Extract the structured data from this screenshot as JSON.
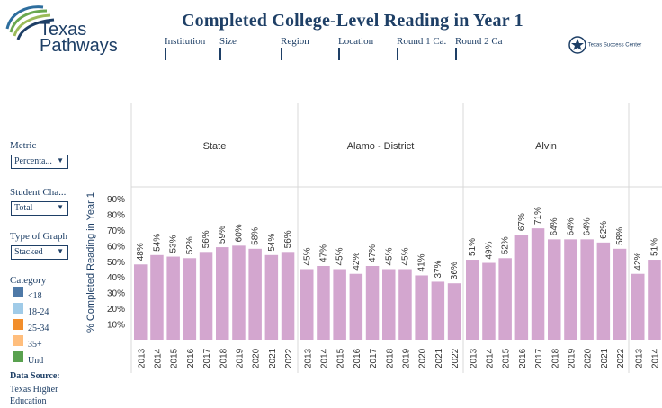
{
  "header": {
    "logo_line1": "Texas",
    "logo_line2": "Pathways",
    "title": "Completed College-Level Reading in Year 1",
    "filters": [
      "Institution",
      "Size",
      "Region",
      "Location",
      "Round 1 Ca.",
      "Round 2 Ca"
    ],
    "partner": "Texas Success Center"
  },
  "controls": {
    "metric_label": "Metric",
    "metric_value": "Percenta...",
    "student_label": "Student Cha...",
    "student_value": "Total",
    "graph_label": "Type of Graph",
    "graph_value": "Stacked",
    "category_label": "Category",
    "categories": [
      {
        "label": "<18",
        "color": "#4e79a7"
      },
      {
        "label": "18-24",
        "color": "#a0cbe8"
      },
      {
        "label": "25-34",
        "color": "#f28e2b"
      },
      {
        "label": "35+",
        "color": "#ffbe7d"
      },
      {
        "label": "Und",
        "color": "#59a14f"
      }
    ],
    "source_label": "Data Source:",
    "source_line1": "Texas Higher",
    "source_line2": "Education"
  },
  "chart_data": {
    "type": "bar",
    "ylabel": "% Completed Reading in Year 1",
    "yticks": [
      "10%",
      "20%",
      "30%",
      "40%",
      "50%",
      "60%",
      "70%",
      "80%",
      "90%"
    ],
    "ylim": [
      0,
      100
    ],
    "bar_color": "#d3a6cf",
    "panels": [
      {
        "title": "State",
        "categories": [
          "2013",
          "2014",
          "2015",
          "2016",
          "2017",
          "2018",
          "2019",
          "2020",
          "2021",
          "2022"
        ],
        "values": [
          48,
          54,
          53,
          52,
          56,
          59,
          60,
          58,
          54,
          56
        ]
      },
      {
        "title": "Alamo - District",
        "categories": [
          "2013",
          "2014",
          "2015",
          "2016",
          "2017",
          "2018",
          "2019",
          "2020",
          "2021",
          "2022"
        ],
        "values": [
          45,
          47,
          45,
          42,
          47,
          45,
          45,
          41,
          37,
          36
        ]
      },
      {
        "title": "Alvin",
        "categories": [
          "2013",
          "2014",
          "2015",
          "2016",
          "2017",
          "2018",
          "2019",
          "2020",
          "2021",
          "2022"
        ],
        "values": [
          51,
          49,
          52,
          67,
          71,
          64,
          64,
          64,
          62,
          58
        ]
      },
      {
        "title": "",
        "categories": [
          "2013",
          "2014"
        ],
        "values": [
          42,
          51
        ]
      }
    ]
  }
}
